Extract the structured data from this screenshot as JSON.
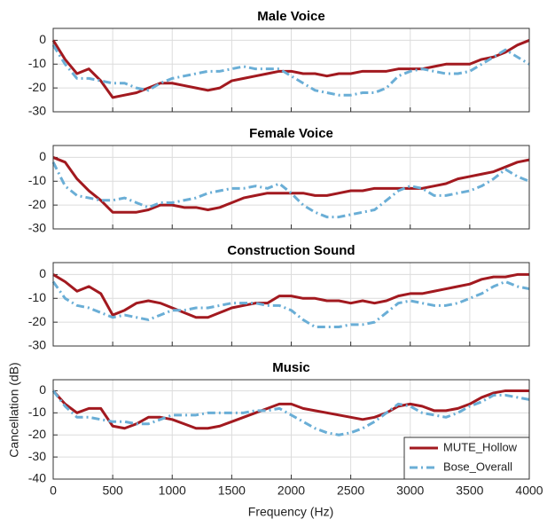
{
  "chart_data": [
    {
      "type": "line",
      "title": "Male Voice",
      "x": [
        0,
        100,
        200,
        300,
        400,
        500,
        600,
        700,
        800,
        900,
        1000,
        1100,
        1200,
        1300,
        1400,
        1500,
        1600,
        1700,
        1800,
        1900,
        2000,
        2100,
        2200,
        2300,
        2400,
        2500,
        2600,
        2700,
        2800,
        2900,
        3000,
        3100,
        3200,
        3300,
        3400,
        3500,
        3600,
        3700,
        3800,
        3900,
        4000
      ],
      "series": [
        {
          "name": "MUTE_Hollow",
          "color": "#a2191f",
          "linestyle": "solid",
          "values": [
            0,
            -8,
            -14,
            -12,
            -17,
            -24,
            -23,
            -22,
            -20,
            -18,
            -18,
            -19,
            -20,
            -21,
            -20,
            -17,
            -16,
            -15,
            -14,
            -13,
            -13,
            -14,
            -14,
            -15,
            -14,
            -14,
            -13,
            -13,
            -13,
            -12,
            -12,
            -12,
            -11,
            -10,
            -10,
            -10,
            -8,
            -7,
            -5,
            -2,
            0
          ]
        },
        {
          "name": "Bose_Overall",
          "color": "#6aaed6",
          "linestyle": "dashdot",
          "values": [
            -2,
            -10,
            -16,
            -16,
            -17,
            -18,
            -18,
            -20,
            -21,
            -18,
            -16,
            -15,
            -14,
            -13,
            -13,
            -12,
            -11,
            -12,
            -12,
            -12,
            -15,
            -18,
            -21,
            -22,
            -23,
            -23,
            -22,
            -22,
            -20,
            -15,
            -13,
            -12,
            -13,
            -14,
            -14,
            -13,
            -10,
            -7,
            -4,
            -7,
            -10
          ]
        }
      ],
      "xlim": [
        0,
        4000
      ],
      "xticks": [
        0,
        500,
        1000,
        1500,
        2000,
        2500,
        3000,
        3500,
        4000
      ],
      "xticklabels": false,
      "ylim": [
        -30,
        5
      ],
      "yticks": [
        -30,
        -20,
        -10,
        0
      ],
      "grid": true
    },
    {
      "type": "line",
      "title": "Female Voice",
      "x": [
        0,
        100,
        200,
        300,
        400,
        500,
        600,
        700,
        800,
        900,
        1000,
        1100,
        1200,
        1300,
        1400,
        1500,
        1600,
        1700,
        1800,
        1900,
        2000,
        2100,
        2200,
        2300,
        2400,
        2500,
        2600,
        2700,
        2800,
        2900,
        3000,
        3100,
        3200,
        3300,
        3400,
        3500,
        3600,
        3700,
        3800,
        3900,
        4000
      ],
      "series": [
        {
          "name": "MUTE_Hollow",
          "color": "#a2191f",
          "linestyle": "solid",
          "values": [
            0,
            -2,
            -9,
            -14,
            -18,
            -23,
            -23,
            -23,
            -22,
            -20,
            -20,
            -21,
            -21,
            -22,
            -21,
            -19,
            -17,
            -16,
            -15,
            -15,
            -15,
            -15,
            -16,
            -16,
            -15,
            -14,
            -14,
            -13,
            -13,
            -13,
            -13,
            -13,
            -12,
            -11,
            -9,
            -8,
            -7,
            -6,
            -4,
            -2,
            -1
          ]
        },
        {
          "name": "Bose_Overall",
          "color": "#6aaed6",
          "linestyle": "dashdot",
          "values": [
            -2,
            -12,
            -16,
            -17,
            -18,
            -18,
            -17,
            -19,
            -21,
            -19,
            -19,
            -18,
            -17,
            -15,
            -14,
            -13,
            -13,
            -12,
            -13,
            -11,
            -15,
            -20,
            -23,
            -25,
            -25,
            -24,
            -23,
            -22,
            -18,
            -14,
            -12,
            -13,
            -16,
            -16,
            -15,
            -14,
            -12,
            -9,
            -5,
            -8,
            -10
          ]
        }
      ],
      "xlim": [
        0,
        4000
      ],
      "xticks": [
        0,
        500,
        1000,
        1500,
        2000,
        2500,
        3000,
        3500,
        4000
      ],
      "xticklabels": false,
      "ylim": [
        -30,
        5
      ],
      "yticks": [
        -30,
        -20,
        -10,
        0
      ],
      "grid": true
    },
    {
      "type": "line",
      "title": "Construction Sound",
      "x": [
        0,
        100,
        200,
        300,
        400,
        500,
        600,
        700,
        800,
        900,
        1000,
        1100,
        1200,
        1300,
        1400,
        1500,
        1600,
        1700,
        1800,
        1900,
        2000,
        2100,
        2200,
        2300,
        2400,
        2500,
        2600,
        2700,
        2800,
        2900,
        3000,
        3100,
        3200,
        3300,
        3400,
        3500,
        3600,
        3700,
        3800,
        3900,
        4000
      ],
      "series": [
        {
          "name": "MUTE_Hollow",
          "color": "#a2191f",
          "linestyle": "solid",
          "values": [
            0,
            -3,
            -7,
            -5,
            -8,
            -17,
            -15,
            -12,
            -11,
            -12,
            -14,
            -16,
            -18,
            -18,
            -16,
            -14,
            -13,
            -12,
            -12,
            -9,
            -9,
            -10,
            -10,
            -11,
            -11,
            -12,
            -11,
            -12,
            -11,
            -9,
            -8,
            -8,
            -7,
            -6,
            -5,
            -4,
            -2,
            -1,
            -1,
            0,
            0
          ]
        },
        {
          "name": "Bose_Overall",
          "color": "#6aaed6",
          "linestyle": "dashdot",
          "values": [
            -3,
            -10,
            -13,
            -14,
            -16,
            -18,
            -17,
            -18,
            -19,
            -17,
            -15,
            -15,
            -14,
            -14,
            -13,
            -12,
            -12,
            -12,
            -13,
            -13,
            -15,
            -19,
            -22,
            -22,
            -22,
            -21,
            -21,
            -20,
            -16,
            -12,
            -11,
            -12,
            -13,
            -13,
            -12,
            -10,
            -8,
            -5,
            -3,
            -5,
            -6
          ]
        }
      ],
      "xlim": [
        0,
        4000
      ],
      "xticks": [
        0,
        500,
        1000,
        1500,
        2000,
        2500,
        3000,
        3500,
        4000
      ],
      "xticklabels": false,
      "ylim": [
        -30,
        5
      ],
      "yticks": [
        -30,
        -20,
        -10,
        0
      ],
      "grid": true
    },
    {
      "type": "line",
      "title": "Music",
      "xlabel": "Frequency (Hz)",
      "ylabel": "Cancellation (dB)",
      "x": [
        0,
        100,
        200,
        300,
        400,
        500,
        600,
        700,
        800,
        900,
        1000,
        1100,
        1200,
        1300,
        1400,
        1500,
        1600,
        1700,
        1800,
        1900,
        2000,
        2100,
        2200,
        2300,
        2400,
        2500,
        2600,
        2700,
        2800,
        2900,
        3000,
        3100,
        3200,
        3300,
        3400,
        3500,
        3600,
        3700,
        3800,
        3900,
        4000
      ],
      "series": [
        {
          "name": "MUTE_Hollow",
          "color": "#a2191f",
          "linestyle": "solid",
          "values": [
            0,
            -6,
            -10,
            -8,
            -8,
            -16,
            -17,
            -15,
            -12,
            -12,
            -13,
            -15,
            -17,
            -17,
            -16,
            -14,
            -12,
            -10,
            -8,
            -6,
            -6,
            -8,
            -9,
            -10,
            -11,
            -12,
            -13,
            -12,
            -10,
            -7,
            -6,
            -7,
            -9,
            -9,
            -8,
            -6,
            -3,
            -1,
            0,
            0,
            0
          ]
        },
        {
          "name": "Bose_Overall",
          "color": "#6aaed6",
          "linestyle": "dashdot",
          "values": [
            0,
            -7,
            -12,
            -12,
            -13,
            -14,
            -14,
            -15,
            -15,
            -13,
            -11,
            -11,
            -11,
            -10,
            -10,
            -10,
            -10,
            -9,
            -9,
            -8,
            -11,
            -14,
            -17,
            -19,
            -20,
            -19,
            -17,
            -14,
            -10,
            -6,
            -7,
            -10,
            -11,
            -12,
            -10,
            -7,
            -5,
            -2,
            -2,
            -3,
            -4
          ]
        }
      ],
      "xlim": [
        0,
        4000
      ],
      "xticks": [
        0,
        500,
        1000,
        1500,
        2000,
        2500,
        3000,
        3500,
        4000
      ],
      "xticklabels": true,
      "ylim": [
        -40,
        5
      ],
      "yticks": [
        -40,
        -30,
        -20,
        -10,
        0
      ],
      "grid": true,
      "legend": "lower right"
    }
  ]
}
